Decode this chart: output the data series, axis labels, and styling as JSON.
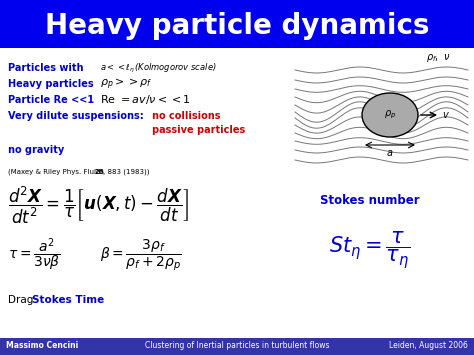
{
  "title": "Heavy particle dynamics",
  "title_color": "white",
  "title_bg_color": "#0000EE",
  "slide_bg_color": "white",
  "footer_bg_color": "#3333AA",
  "footer_left": "Massimo Cencini",
  "footer_center": "Clustering of Inertial particles in turbulent flows",
  "footer_right": "Leiden, August 2006",
  "blue_text_color": "#0000CC",
  "red_text_color": "#CC0000",
  "black": "#000000",
  "gray_particle": "#aaaaaa",
  "line_color": "#777777"
}
